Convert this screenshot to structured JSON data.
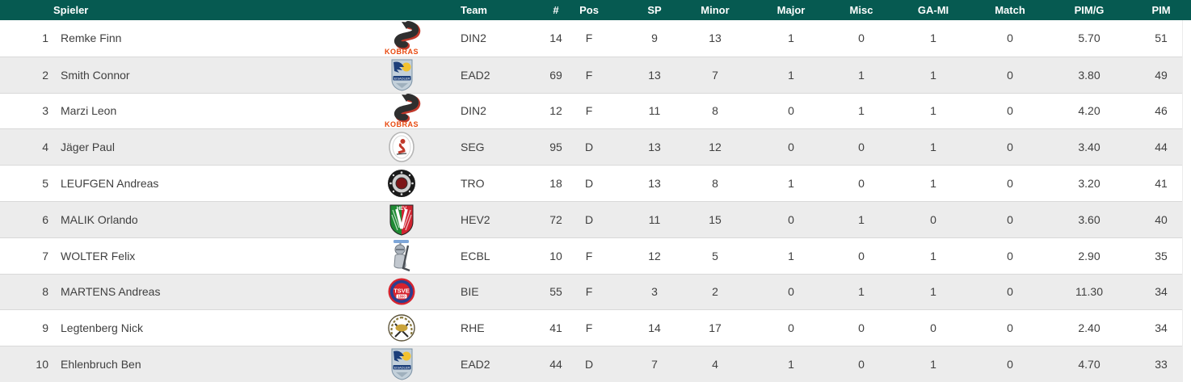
{
  "theme": {
    "header_bg": "#065a51",
    "header_text": "#ffffff",
    "row_bg": "#ffffff",
    "row_alt_bg": "#ececec",
    "row_border": "#d9d9d9",
    "text": "#3f3f3f"
  },
  "table": {
    "columns": [
      {
        "key": "rank",
        "label": ""
      },
      {
        "key": "name",
        "label": "Spieler"
      },
      {
        "key": "logo",
        "label": ""
      },
      {
        "key": "team",
        "label": "Team"
      },
      {
        "key": "num",
        "label": "#"
      },
      {
        "key": "pos",
        "label": "Pos"
      },
      {
        "key": "sp",
        "label": "SP"
      },
      {
        "key": "minor",
        "label": "Minor"
      },
      {
        "key": "major",
        "label": "Major"
      },
      {
        "key": "misc",
        "label": "Misc"
      },
      {
        "key": "gami",
        "label": "GA-MI"
      },
      {
        "key": "match",
        "label": "Match"
      },
      {
        "key": "pimg",
        "label": "PIM/G"
      },
      {
        "key": "pim",
        "label": "PIM"
      }
    ],
    "rows": [
      {
        "rank": "1",
        "name": "Remke Finn",
        "logo": "kobras",
        "team": "DIN2",
        "num": "14",
        "pos": "F",
        "sp": "9",
        "minor": "13",
        "major": "1",
        "misc": "0",
        "gami": "1",
        "match": "0",
        "pimg": "5.70",
        "pim": "51"
      },
      {
        "rank": "2",
        "name": "Smith Connor",
        "logo": "eisadler",
        "team": "EAD2",
        "num": "69",
        "pos": "F",
        "sp": "13",
        "minor": "7",
        "major": "1",
        "misc": "1",
        "gami": "1",
        "match": "0",
        "pimg": "3.80",
        "pim": "49"
      },
      {
        "rank": "3",
        "name": "Marzi Leon",
        "logo": "kobras",
        "team": "DIN2",
        "num": "12",
        "pos": "F",
        "sp": "11",
        "minor": "8",
        "major": "0",
        "misc": "1",
        "gami": "1",
        "match": "0",
        "pimg": "4.20",
        "pim": "46"
      },
      {
        "rank": "4",
        "name": "Jäger Paul",
        "logo": "seg",
        "team": "SEG",
        "num": "95",
        "pos": "D",
        "sp": "13",
        "minor": "12",
        "major": "0",
        "misc": "0",
        "gami": "1",
        "match": "0",
        "pimg": "3.40",
        "pim": "44"
      },
      {
        "rank": "5",
        "name": "LEUFGEN Andreas",
        "logo": "tro",
        "team": "TRO",
        "num": "18",
        "pos": "D",
        "sp": "13",
        "minor": "8",
        "major": "1",
        "misc": "0",
        "gami": "1",
        "match": "0",
        "pimg": "3.20",
        "pim": "41"
      },
      {
        "rank": "6",
        "name": "MALIK Orlando",
        "logo": "hev",
        "team": "HEV2",
        "num": "72",
        "pos": "D",
        "sp": "11",
        "minor": "15",
        "major": "0",
        "misc": "1",
        "gami": "0",
        "match": "0",
        "pimg": "3.60",
        "pim": "40"
      },
      {
        "rank": "7",
        "name": "WOLTER Felix",
        "logo": "ecbl",
        "team": "ECBL",
        "num": "10",
        "pos": "F",
        "sp": "12",
        "minor": "5",
        "major": "1",
        "misc": "0",
        "gami": "1",
        "match": "0",
        "pimg": "2.90",
        "pim": "35"
      },
      {
        "rank": "8",
        "name": "MARTENS Andreas",
        "logo": "tsve",
        "team": "BIE",
        "num": "55",
        "pos": "F",
        "sp": "3",
        "minor": "2",
        "major": "0",
        "misc": "1",
        "gami": "1",
        "match": "0",
        "pimg": "11.30",
        "pim": "34"
      },
      {
        "rank": "9",
        "name": "Legtenberg Nick",
        "logo": "rhe",
        "team": "RHE",
        "num": "41",
        "pos": "F",
        "sp": "14",
        "minor": "17",
        "major": "0",
        "misc": "0",
        "gami": "0",
        "match": "0",
        "pimg": "2.40",
        "pim": "34"
      },
      {
        "rank": "10",
        "name": "Ehlenbruch Ben",
        "logo": "eisadler",
        "team": "EAD2",
        "num": "44",
        "pos": "D",
        "sp": "7",
        "minor": "4",
        "major": "1",
        "misc": "0",
        "gami": "1",
        "match": "0",
        "pimg": "4.70",
        "pim": "33"
      }
    ]
  },
  "logos": {
    "kobras": {
      "label": "kobras-snake-logo",
      "text": "KOBRAS",
      "colors": [
        "#2f2f2f",
        "#c0392b",
        "#e8490f"
      ]
    },
    "eisadler": {
      "label": "eisadler-shield-logo",
      "text": "EISADLER",
      "colors": [
        "#c3d0da",
        "#1c3f7a",
        "#f2c230"
      ]
    },
    "seg": {
      "label": "seg-round-logo",
      "colors": [
        "#ffffff",
        "#b5b5b5",
        "#c0392b"
      ]
    },
    "tro": {
      "label": "tro-round-logo",
      "colors": [
        "#1b1b1b",
        "#cfcfcf",
        "#7d1517"
      ]
    },
    "hev": {
      "label": "hev-shield-logo",
      "text": "HEV",
      "colors": [
        "#1f8a34",
        "#cf2430",
        "#ffffff"
      ]
    },
    "ecbl": {
      "label": "ecbl-knight-logo",
      "colors": [
        "#aab2bb",
        "#c2c8cf",
        "#7ea6d8"
      ]
    },
    "tsve": {
      "label": "tsve-round-logo",
      "text": "TSVE",
      "subtext": "1890",
      "colors": [
        "#d6232e",
        "#2a3f8f",
        "#ffffff"
      ]
    },
    "rhe": {
      "label": "rhe-round-logo",
      "colors": [
        "#ffffff",
        "#8a7a3d",
        "#c9a33a"
      ]
    }
  }
}
